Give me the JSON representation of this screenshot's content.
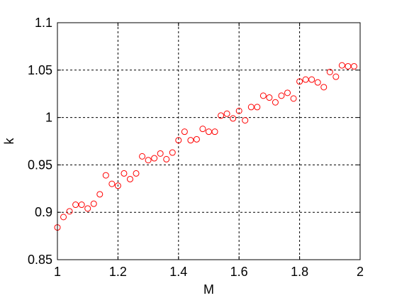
{
  "chart_data": {
    "type": "scatter",
    "xlabel": "M",
    "ylabel": "k",
    "xlim": [
      1,
      2
    ],
    "ylim": [
      0.85,
      1.1
    ],
    "xticks": [
      1,
      1.2,
      1.4,
      1.6,
      1.8,
      2
    ],
    "xtick_labels": [
      "1",
      "1.2",
      "1.4",
      "1.6",
      "1.8",
      "2"
    ],
    "yticks": [
      0.85,
      0.9,
      0.95,
      1,
      1.05,
      1.1
    ],
    "ytick_labels": [
      "0.85",
      "0.9",
      "0.95",
      "1",
      "1.05",
      "1.1"
    ],
    "grid": true,
    "marker_color": "#ff0000",
    "marker": "circle-open",
    "points": [
      {
        "x": 1.0,
        "y": 0.884
      },
      {
        "x": 1.02,
        "y": 0.895
      },
      {
        "x": 1.04,
        "y": 0.901
      },
      {
        "x": 1.06,
        "y": 0.908
      },
      {
        "x": 1.08,
        "y": 0.908
      },
      {
        "x": 1.1,
        "y": 0.904
      },
      {
        "x": 1.12,
        "y": 0.909
      },
      {
        "x": 1.14,
        "y": 0.919
      },
      {
        "x": 1.16,
        "y": 0.939
      },
      {
        "x": 1.18,
        "y": 0.93
      },
      {
        "x": 1.2,
        "y": 0.928
      },
      {
        "x": 1.22,
        "y": 0.941
      },
      {
        "x": 1.24,
        "y": 0.935
      },
      {
        "x": 1.26,
        "y": 0.941
      },
      {
        "x": 1.28,
        "y": 0.959
      },
      {
        "x": 1.3,
        "y": 0.955
      },
      {
        "x": 1.32,
        "y": 0.957
      },
      {
        "x": 1.34,
        "y": 0.962
      },
      {
        "x": 1.36,
        "y": 0.956
      },
      {
        "x": 1.38,
        "y": 0.963
      },
      {
        "x": 1.4,
        "y": 0.976
      },
      {
        "x": 1.42,
        "y": 0.985
      },
      {
        "x": 1.44,
        "y": 0.976
      },
      {
        "x": 1.46,
        "y": 0.977
      },
      {
        "x": 1.48,
        "y": 0.988
      },
      {
        "x": 1.5,
        "y": 0.985
      },
      {
        "x": 1.52,
        "y": 0.985
      },
      {
        "x": 1.54,
        "y": 1.002
      },
      {
        "x": 1.56,
        "y": 1.004
      },
      {
        "x": 1.58,
        "y": 0.999
      },
      {
        "x": 1.6,
        "y": 1.007
      },
      {
        "x": 1.62,
        "y": 0.997
      },
      {
        "x": 1.64,
        "y": 1.011
      },
      {
        "x": 1.66,
        "y": 1.011
      },
      {
        "x": 1.68,
        "y": 1.023
      },
      {
        "x": 1.7,
        "y": 1.021
      },
      {
        "x": 1.72,
        "y": 1.016
      },
      {
        "x": 1.74,
        "y": 1.023
      },
      {
        "x": 1.76,
        "y": 1.026
      },
      {
        "x": 1.78,
        "y": 1.02
      },
      {
        "x": 1.8,
        "y": 1.038
      },
      {
        "x": 1.82,
        "y": 1.04
      },
      {
        "x": 1.84,
        "y": 1.04
      },
      {
        "x": 1.86,
        "y": 1.037
      },
      {
        "x": 1.88,
        "y": 1.032
      },
      {
        "x": 1.9,
        "y": 1.048
      },
      {
        "x": 1.92,
        "y": 1.043
      },
      {
        "x": 1.94,
        "y": 1.055
      },
      {
        "x": 1.96,
        "y": 1.054
      },
      {
        "x": 1.98,
        "y": 1.054
      }
    ]
  }
}
